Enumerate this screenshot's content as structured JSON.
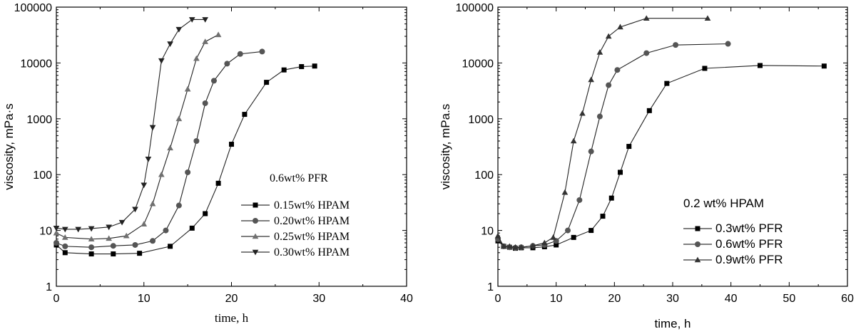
{
  "chart_data": [
    {
      "type": "scatter",
      "title": "",
      "xlabel": "time, h",
      "ylabel": "viscosity, mPa·s",
      "xlim": [
        0,
        40
      ],
      "ylim": [
        1,
        100000
      ],
      "yscale": "log",
      "x_ticks": [
        "0",
        "10",
        "20",
        "30",
        "40"
      ],
      "y_ticks": [
        "1",
        "10",
        "100",
        "1000",
        "10000",
        "100000"
      ],
      "legend_title": "0.6wt% PFR",
      "legend_position": "center-right",
      "series": [
        {
          "name": "0.15wt% HPAM",
          "marker": "square",
          "color": "#000000",
          "x": [
            0,
            1,
            4,
            6.5,
            9.5,
            13,
            15.5,
            17,
            18.5,
            20,
            21.5,
            24,
            26,
            28,
            29.5
          ],
          "y": [
            5.5,
            4,
            3.8,
            3.8,
            3.9,
            5.2,
            11,
            20,
            70,
            350,
            1200,
            4500,
            7500,
            8600,
            8800
          ]
        },
        {
          "name": "0.20wt% HPAM",
          "marker": "circle",
          "color": "#555555",
          "x": [
            0,
            1,
            4,
            6.5,
            9,
            11,
            12.5,
            14,
            15,
            16,
            17,
            18,
            19.5,
            21,
            23.5
          ],
          "y": [
            6,
            5.2,
            5,
            5.3,
            5.5,
            6.5,
            10,
            28,
            110,
            400,
            1900,
            4800,
            9700,
            14500,
            16000
          ]
        },
        {
          "name": "0.25wt% HPAM",
          "marker": "triangle-up",
          "color": "#707070",
          "x": [
            0,
            1,
            4,
            6,
            8,
            10,
            11,
            12,
            13,
            14,
            15,
            16,
            17,
            18.5
          ],
          "y": [
            9,
            7.5,
            7,
            7.2,
            8,
            13,
            30,
            100,
            300,
            1000,
            3400,
            12000,
            24000,
            32000
          ]
        },
        {
          "name": "0.30wt% HPAM",
          "marker": "triangle-down",
          "color": "#222222",
          "x": [
            0,
            1,
            2.5,
            4,
            6,
            7.5,
            9,
            10,
            10.5,
            11,
            12,
            13,
            14,
            15.5,
            17
          ],
          "y": [
            11,
            10.5,
            10.5,
            10.8,
            11.5,
            14,
            24,
            65,
            190,
            700,
            11000,
            22000,
            40000,
            60000,
            60000
          ]
        }
      ]
    },
    {
      "type": "scatter",
      "title": "",
      "xlabel": "time, h",
      "ylabel": "viscosity, mPa.s",
      "xlim": [
        0,
        60
      ],
      "ylim": [
        1,
        100000
      ],
      "yscale": "log",
      "x_ticks": [
        "0",
        "10",
        "20",
        "30",
        "40",
        "50",
        "60"
      ],
      "y_ticks": [
        "1",
        "10",
        "100",
        "1000",
        "10000",
        "100000"
      ],
      "legend_title": "0.2 wt% HPAM",
      "legend_position": "bottom-right",
      "series": [
        {
          "name": "0.3wt% PFR",
          "marker": "square",
          "color": "#000000",
          "x": [
            0,
            1,
            2,
            3,
            4,
            6,
            8,
            10,
            13,
            16,
            18,
            19.5,
            21,
            22.5,
            26,
            29,
            35.5,
            45,
            56
          ],
          "y": [
            6.5,
            5.2,
            5,
            4.8,
            4.9,
            4.9,
            5.1,
            5.5,
            7.5,
            10,
            18,
            38,
            110,
            320,
            1400,
            4300,
            8000,
            9000,
            8800
          ]
        },
        {
          "name": "0.6wt% PFR",
          "marker": "circle",
          "color": "#555555",
          "x": [
            0,
            1,
            2,
            3,
            4,
            6,
            8,
            10,
            12,
            14,
            16,
            17.5,
            19,
            20.5,
            25.5,
            30.5,
            39.5
          ],
          "y": [
            7,
            5.2,
            5,
            4.9,
            5,
            5.3,
            5.5,
            6.5,
            10,
            35,
            260,
            1100,
            4000,
            7500,
            15000,
            21000,
            22000
          ]
        },
        {
          "name": "0.9wt% PFR",
          "marker": "triangle-up",
          "color": "#333333",
          "x": [
            0,
            1,
            2,
            3,
            4,
            6,
            8,
            9.5,
            11.5,
            13,
            14.5,
            16,
            17.5,
            19,
            21,
            25.5,
            36
          ],
          "y": [
            8,
            5.2,
            5.2,
            5,
            5,
            5.3,
            6,
            7.5,
            48,
            400,
            1250,
            5000,
            15500,
            30000,
            44000,
            63000,
            63000
          ]
        }
      ]
    }
  ]
}
